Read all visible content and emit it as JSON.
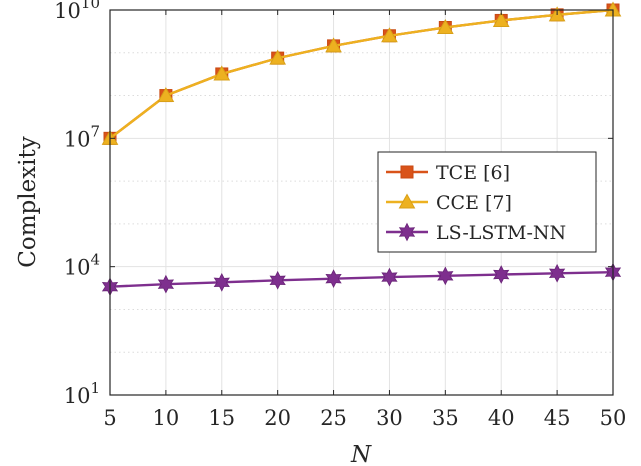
{
  "chart_data": {
    "type": "line",
    "xlabel": "N",
    "ylabel": "Complexity",
    "yscale": "log",
    "grid": true,
    "legend_position": "right",
    "xlim": [
      5,
      50
    ],
    "ylim": [
      10,
      10000000000
    ],
    "x": [
      5,
      10,
      15,
      20,
      25,
      30,
      35,
      40,
      45,
      50
    ],
    "x_tick_labels": [
      "5",
      "10",
      "15",
      "20",
      "25",
      "30",
      "35",
      "40",
      "45",
      "50"
    ],
    "y_ticks": [
      {
        "value": 10,
        "base": "10",
        "exp": "1"
      },
      {
        "value": 10000,
        "base": "10",
        "exp": "4"
      },
      {
        "value": 10000000,
        "base": "10",
        "exp": "7"
      },
      {
        "value": 10000000000,
        "base": "10",
        "exp": "10"
      }
    ],
    "series": [
      {
        "name": "TCE [6]",
        "color": "#d95319",
        "marker": "square",
        "values": [
          10000000,
          100000000,
          320000000,
          750000000,
          1450000000,
          2500000000,
          3900000000,
          5700000000,
          7700000000,
          10000000000
        ]
      },
      {
        "name": "CCE [7]",
        "color": "#edb120",
        "marker": "triangle",
        "values": [
          10000000,
          100000000,
          320000000,
          750000000,
          1450000000,
          2500000000,
          3900000000,
          5700000000,
          7700000000,
          10000000000
        ]
      },
      {
        "name": "LS-LSTM-NN",
        "color": "#7e2f8e",
        "marker": "hexagram",
        "values": [
          3400,
          3900,
          4300,
          4800,
          5250,
          5700,
          6100,
          6550,
          7000,
          7450
        ]
      }
    ]
  }
}
